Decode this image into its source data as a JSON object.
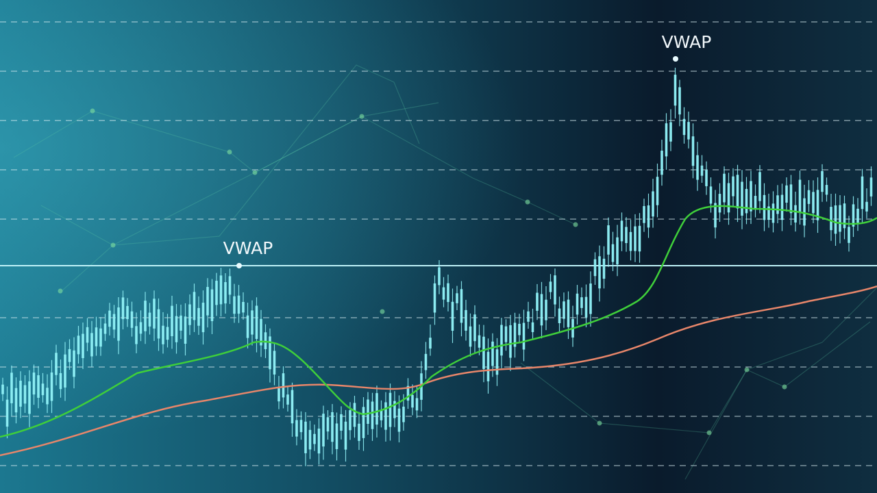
{
  "annotations": [
    {
      "label": "VWAP"
    },
    {
      "label": "VWAP"
    }
  ]
}
